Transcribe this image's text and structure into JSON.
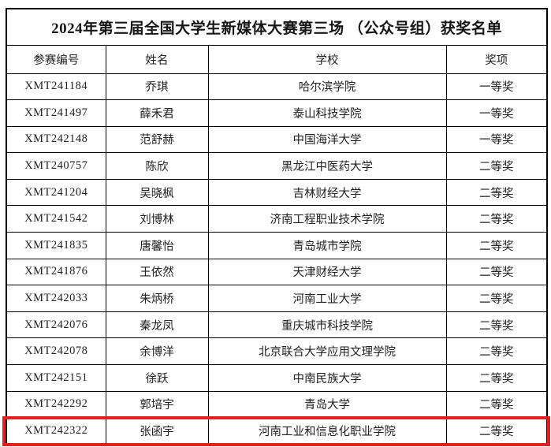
{
  "page_title": "2024年第三届全国大学生新媒体大赛第三场 （公众号组）获奖名单",
  "table": {
    "columns": [
      {
        "key": "id",
        "label": "参赛编号"
      },
      {
        "key": "name",
        "label": "姓名"
      },
      {
        "key": "school",
        "label": "学校"
      },
      {
        "key": "award",
        "label": "奖项"
      }
    ],
    "rows": [
      {
        "id": "XMT241184",
        "name": "乔琪",
        "school": "哈尔滨学院",
        "award": "一等奖"
      },
      {
        "id": "XMT241497",
        "name": "薛禾君",
        "school": "泰山科技学院",
        "award": "一等奖"
      },
      {
        "id": "XMT242148",
        "name": "范舒赫",
        "school": "中国海洋大学",
        "award": "一等奖"
      },
      {
        "id": "XMT240757",
        "name": "陈欣",
        "school": "黑龙江中医药大学",
        "award": "二等奖"
      },
      {
        "id": "XMT241204",
        "name": "吴晓枫",
        "school": "吉林财经大学",
        "award": "二等奖"
      },
      {
        "id": "XMT241542",
        "name": "刘博林",
        "school": "济南工程职业技术学院",
        "award": "二等奖"
      },
      {
        "id": "XMT241835",
        "name": "唐馨怡",
        "school": "青岛城市学院",
        "award": "二等奖"
      },
      {
        "id": "XMT241876",
        "name": "王依然",
        "school": "天津财经大学",
        "award": "二等奖"
      },
      {
        "id": "XMT242033",
        "name": "朱炳桥",
        "school": "河南工业大学",
        "award": "二等奖"
      },
      {
        "id": "XMT242076",
        "name": "秦龙凤",
        "school": "重庆城市科技学院",
        "award": "二等奖"
      },
      {
        "id": "XMT242078",
        "name": "余博洋",
        "school": "北京联合大学应用文理学院",
        "award": "二等奖"
      },
      {
        "id": "XMT242151",
        "name": "徐跃",
        "school": "中南民族大学",
        "award": "二等奖"
      },
      {
        "id": "XMT242292",
        "name": "郭培宇",
        "school": "青岛大学",
        "award": "二等奖"
      },
      {
        "id": "XMT242322",
        "name": "张函宇",
        "school": "河南工业和信息化职业学院",
        "award": "二等奖"
      }
    ]
  },
  "highlight": {
    "row_id": "XMT242322",
    "border_color": "#e32020"
  },
  "colors": {
    "background": "#ffffff",
    "table_border": "#000000",
    "text": "#212121",
    "highlight_border": "#e32020"
  }
}
